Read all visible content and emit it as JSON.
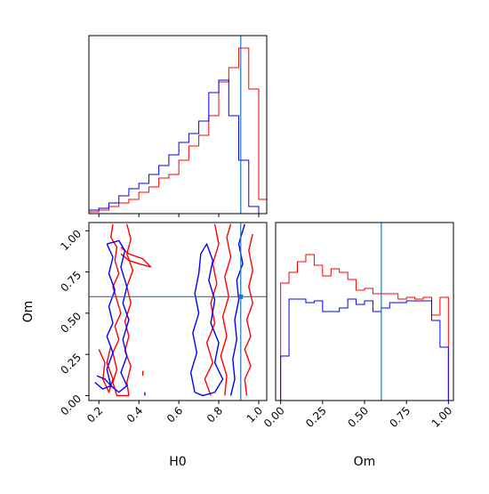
{
  "chart_data": {
    "type": "corner",
    "parameters": [
      "H0",
      "Om"
    ],
    "truth": {
      "H0": 0.91,
      "Om": 0.6
    },
    "colors": {
      "series_a": "#ff0000",
      "series_b": "#0000ff",
      "truth": "#1f77b4",
      "axes": "#000000"
    },
    "panels": [
      {
        "id": "H0-marginal",
        "type": "histogram-step",
        "xlim": [
          0.15,
          1.04
        ],
        "ylim": [
          0,
          1.0
        ],
        "bin_edges": [
          0.15,
          0.2,
          0.25,
          0.3,
          0.35,
          0.4,
          0.45,
          0.5,
          0.55,
          0.6,
          0.65,
          0.7,
          0.75,
          0.8,
          0.85,
          0.9,
          0.95,
          1.0,
          1.04
        ],
        "series": [
          {
            "color_key": "series_a",
            "values": [
              0.01,
              0.02,
              0.04,
              0.06,
              0.08,
              0.12,
              0.15,
              0.2,
              0.22,
              0.3,
              0.38,
              0.44,
              0.55,
              0.74,
              0.82,
              0.93,
              0.7,
              0.08
            ]
          },
          {
            "color_key": "series_b",
            "values": [
              0.02,
              0.03,
              0.06,
              0.1,
              0.14,
              0.17,
              0.22,
              0.27,
              0.33,
              0.4,
              0.45,
              0.52,
              0.68,
              0.75,
              0.55,
              0.3,
              0.04,
              0.0
            ]
          }
        ]
      },
      {
        "id": "Om-marginal",
        "type": "histogram-step",
        "xlim": [
          -0.03,
          1.03
        ],
        "ylim": [
          0,
          1.0
        ],
        "xticks": [
          0.0,
          0.25,
          0.5,
          0.75,
          1.0
        ],
        "xtick_labels": [
          "0.00",
          "0.25",
          "0.50",
          "0.75",
          "1.00"
        ],
        "bin_edges": [
          0.0,
          0.05,
          0.1,
          0.15,
          0.2,
          0.25,
          0.3,
          0.35,
          0.4,
          0.45,
          0.5,
          0.55,
          0.6,
          0.65,
          0.7,
          0.75,
          0.8,
          0.85,
          0.9,
          0.95,
          1.0
        ],
        "series": [
          {
            "color_key": "series_a",
            "values": [
              0.66,
              0.72,
              0.78,
              0.82,
              0.76,
              0.7,
              0.74,
              0.72,
              0.68,
              0.62,
              0.63,
              0.6,
              0.6,
              0.6,
              0.57,
              0.58,
              0.57,
              0.58,
              0.48,
              0.58
            ]
          },
          {
            "color_key": "series_b",
            "values": [
              0.25,
              0.57,
              0.57,
              0.55,
              0.56,
              0.5,
              0.5,
              0.52,
              0.57,
              0.54,
              0.56,
              0.5,
              0.52,
              0.55,
              0.55,
              0.56,
              0.56,
              0.56,
              0.45,
              0.3
            ]
          }
        ]
      },
      {
        "id": "H0-Om-joint",
        "type": "contour",
        "xlim": [
          0.15,
          1.04
        ],
        "ylim": [
          -0.03,
          1.05
        ],
        "xticks": [
          0.2,
          0.4,
          0.6,
          0.8,
          1.0
        ],
        "xtick_labels": [
          "0.2",
          "0.4",
          "0.6",
          "0.8",
          "1.0"
        ],
        "yticks": [
          0.0,
          0.25,
          0.5,
          0.75,
          1.0
        ],
        "ytick_labels": [
          "0.00",
          "0.25",
          "0.50",
          "0.75",
          "1.00"
        ],
        "contours": [
          {
            "color_key": "series_a",
            "points": [
              [
                0.27,
                1.04
              ],
              [
                0.26,
                0.96
              ],
              [
                0.29,
                0.9
              ],
              [
                0.28,
                0.82
              ],
              [
                0.3,
                0.74
              ],
              [
                0.27,
                0.66
              ],
              [
                0.29,
                0.58
              ],
              [
                0.31,
                0.5
              ],
              [
                0.28,
                0.42
              ],
              [
                0.3,
                0.34
              ],
              [
                0.27,
                0.26
              ],
              [
                0.29,
                0.16
              ],
              [
                0.27,
                0.08
              ],
              [
                0.29,
                0.0
              ],
              [
                0.35,
                0.0
              ],
              [
                0.34,
                0.08
              ],
              [
                0.36,
                0.18
              ],
              [
                0.33,
                0.27
              ],
              [
                0.35,
                0.36
              ],
              [
                0.33,
                0.45
              ],
              [
                0.36,
                0.56
              ],
              [
                0.34,
                0.66
              ],
              [
                0.37,
                0.76
              ],
              [
                0.34,
                0.86
              ],
              [
                0.36,
                0.95
              ],
              [
                0.34,
                1.04
              ]
            ]
          },
          {
            "color_key": "series_a",
            "points": [
              [
                0.2,
                0.28
              ],
              [
                0.23,
                0.2
              ],
              [
                0.22,
                0.1
              ],
              [
                0.25,
                0.02
              ],
              [
                0.27,
                0.1
              ],
              [
                0.24,
                0.2
              ],
              [
                0.26,
                0.3
              ]
            ]
          },
          {
            "color_key": "series_a",
            "points": [
              [
                0.31,
                0.9
              ],
              [
                0.35,
                0.86
              ],
              [
                0.42,
                0.83
              ],
              [
                0.46,
                0.78
              ],
              [
                0.4,
                0.8
              ],
              [
                0.35,
                0.82
              ],
              [
                0.31,
                0.86
              ]
            ]
          },
          {
            "color_key": "series_a",
            "points": [
              [
                0.78,
                1.04
              ],
              [
                0.8,
                0.92
              ],
              [
                0.77,
                0.8
              ],
              [
                0.79,
                0.68
              ],
              [
                0.76,
                0.56
              ],
              [
                0.78,
                0.44
              ],
              [
                0.74,
                0.32
              ],
              [
                0.77,
                0.2
              ],
              [
                0.73,
                0.1
              ],
              [
                0.76,
                0.0
              ]
            ]
          },
          {
            "color_key": "series_a",
            "points": [
              [
                0.83,
                0.0
              ],
              [
                0.84,
                0.12
              ],
              [
                0.81,
                0.24
              ],
              [
                0.84,
                0.36
              ],
              [
                0.82,
                0.48
              ],
              [
                0.85,
                0.6
              ],
              [
                0.83,
                0.72
              ],
              [
                0.86,
                0.84
              ],
              [
                0.84,
                0.96
              ],
              [
                0.86,
                1.04
              ]
            ]
          },
          {
            "color_key": "series_a",
            "points": [
              [
                0.94,
                0.0
              ],
              [
                0.93,
                0.1
              ],
              [
                0.96,
                0.18
              ],
              [
                0.93,
                0.28
              ],
              [
                0.96,
                0.36
              ],
              [
                0.94,
                0.46
              ],
              [
                0.97,
                0.56
              ],
              [
                0.95,
                0.66
              ],
              [
                0.97,
                0.76
              ],
              [
                0.95,
                0.88
              ],
              [
                0.97,
                0.98
              ]
            ]
          },
          {
            "color_key": "series_a",
            "points": [
              [
                0.42,
                0.12
              ],
              [
                0.42,
                0.15
              ]
            ]
          },
          {
            "color_key": "series_b",
            "points": [
              [
                0.24,
                0.92
              ],
              [
                0.27,
                0.84
              ],
              [
                0.25,
                0.74
              ],
              [
                0.28,
                0.64
              ],
              [
                0.25,
                0.54
              ],
              [
                0.27,
                0.44
              ],
              [
                0.24,
                0.36
              ],
              [
                0.27,
                0.26
              ],
              [
                0.24,
                0.16
              ],
              [
                0.26,
                0.06
              ],
              [
                0.3,
                0.02
              ],
              [
                0.34,
                0.06
              ],
              [
                0.31,
                0.14
              ],
              [
                0.34,
                0.24
              ],
              [
                0.32,
                0.34
              ],
              [
                0.35,
                0.46
              ],
              [
                0.32,
                0.56
              ],
              [
                0.34,
                0.66
              ],
              [
                0.31,
                0.78
              ],
              [
                0.33,
                0.88
              ],
              [
                0.3,
                0.94
              ],
              [
                0.24,
                0.92
              ]
            ]
          },
          {
            "color_key": "series_b",
            "points": [
              [
                0.18,
                0.08
              ],
              [
                0.22,
                0.04
              ],
              [
                0.26,
                0.06
              ],
              [
                0.23,
                0.1
              ],
              [
                0.19,
                0.12
              ]
            ]
          },
          {
            "color_key": "series_b",
            "points": [
              [
                0.68,
                0.02
              ],
              [
                0.66,
                0.14
              ],
              [
                0.69,
                0.26
              ],
              [
                0.67,
                0.38
              ],
              [
                0.7,
                0.5
              ],
              [
                0.68,
                0.62
              ],
              [
                0.7,
                0.74
              ],
              [
                0.71,
                0.86
              ],
              [
                0.74,
                0.92
              ],
              [
                0.77,
                0.82
              ],
              [
                0.75,
                0.7
              ],
              [
                0.78,
                0.58
              ],
              [
                0.76,
                0.44
              ],
              [
                0.8,
                0.32
              ],
              [
                0.78,
                0.2
              ],
              [
                0.82,
                0.1
              ],
              [
                0.78,
                0.02
              ],
              [
                0.72,
                0.0
              ],
              [
                0.68,
                0.02
              ]
            ]
          },
          {
            "color_key": "series_b",
            "points": [
              [
                0.86,
                0.0
              ],
              [
                0.88,
                0.1
              ],
              [
                0.87,
                0.22
              ],
              [
                0.89,
                0.34
              ],
              [
                0.88,
                0.46
              ],
              [
                0.9,
                0.58
              ],
              [
                0.89,
                0.7
              ],
              [
                0.92,
                0.8
              ],
              [
                0.9,
                0.92
              ],
              [
                0.93,
                1.04
              ]
            ]
          },
          {
            "color_key": "series_b",
            "points": [
              [
                0.43,
                0.0
              ],
              [
                0.43,
                0.02
              ]
            ]
          }
        ]
      }
    ]
  }
}
